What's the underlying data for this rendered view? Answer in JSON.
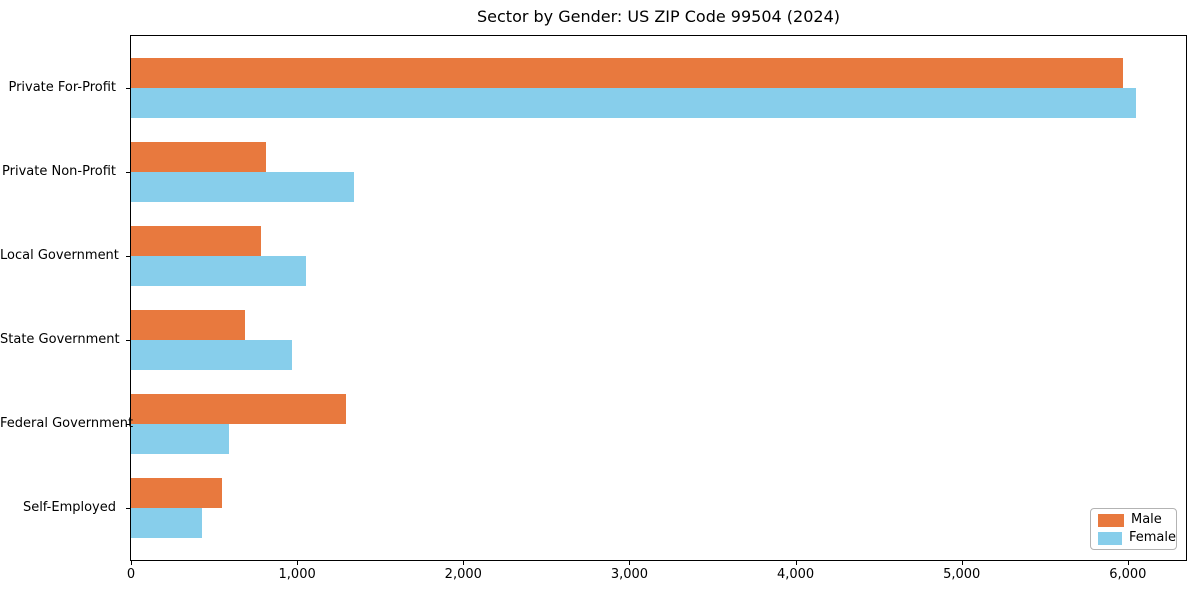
{
  "chart_data": {
    "type": "bar",
    "orientation": "horizontal",
    "title": "Sector by Gender: US ZIP Code 99504 (2024)",
    "categories": [
      "Private For-Profit",
      "Private Non-Profit",
      "Local Government",
      "State Government",
      "Federal Government",
      "Self-Employed"
    ],
    "series": [
      {
        "name": "Male",
        "color": "#e8793e",
        "values": [
          5970,
          815,
          785,
          685,
          1295,
          550
        ]
      },
      {
        "name": "Female",
        "color": "#87ceeb",
        "values": [
          6050,
          1345,
          1055,
          970,
          590,
          430
        ]
      }
    ],
    "xlabel": "",
    "ylabel": "",
    "xlim": [
      0,
      6350
    ],
    "xticks": [
      0,
      1000,
      2000,
      3000,
      4000,
      5000,
      6000
    ],
    "xtick_labels": [
      "0",
      "1,000",
      "2,000",
      "3,000",
      "4,000",
      "5,000",
      "6,000"
    ],
    "grid": false,
    "legend": {
      "position": "lower right"
    },
    "axis_color": "#000000",
    "background": "#ffffff"
  }
}
